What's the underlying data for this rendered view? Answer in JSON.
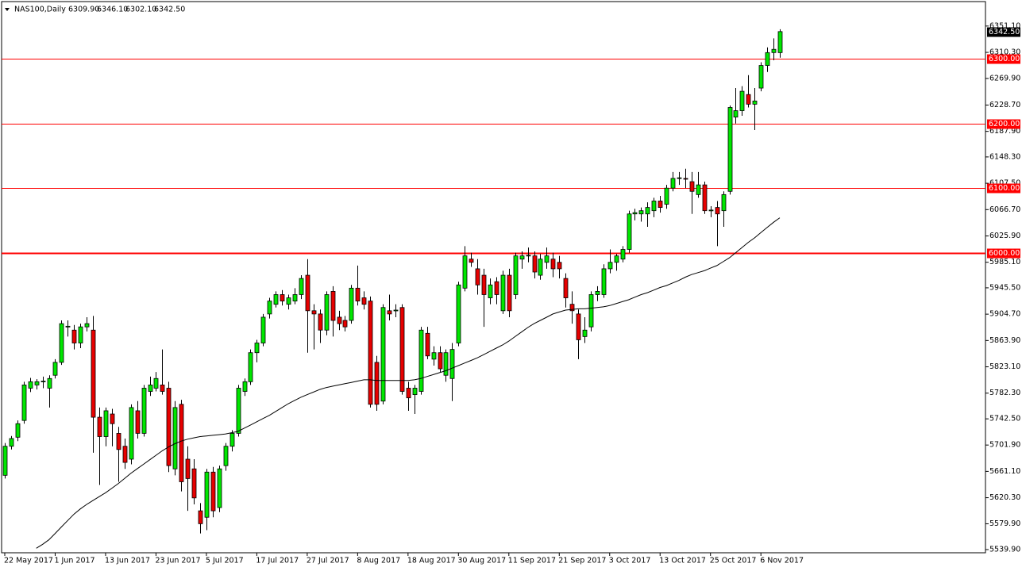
{
  "chart_data": {
    "type": "candlestick",
    "header": {
      "symbol": "NAS100,Daily",
      "ohlc_labels": [
        "6309.90",
        "6346.10",
        "6302.10",
        "6342.50"
      ]
    },
    "categories": [
      "22 May 2017",
      null,
      null,
      null,
      null,
      null,
      null,
      null,
      "1 Jun 2017",
      null,
      null,
      null,
      null,
      null,
      null,
      null,
      "13 Jun 2017",
      null,
      null,
      null,
      null,
      null,
      null,
      null,
      "23 Jun 2017",
      null,
      null,
      null,
      null,
      null,
      null,
      null,
      "5 Jul 2017",
      null,
      null,
      null,
      null,
      null,
      null,
      null,
      "17 Jul 2017",
      null,
      null,
      null,
      null,
      null,
      null,
      null,
      "27 Jul 2017",
      null,
      null,
      null,
      null,
      null,
      null,
      null,
      "8 Aug 2017",
      null,
      null,
      null,
      null,
      null,
      null,
      null,
      "18 Aug 2017",
      null,
      null,
      null,
      null,
      null,
      null,
      null,
      "30 Aug 2017",
      null,
      null,
      null,
      null,
      null,
      null,
      null,
      "11 Sep 2017",
      null,
      null,
      null,
      null,
      null,
      null,
      null,
      "21 Sep 2017",
      null,
      null,
      null,
      null,
      null,
      null,
      null,
      "3 Oct 2017",
      null,
      null,
      null,
      null,
      null,
      null,
      null,
      "13 Oct 2017",
      null,
      null,
      null,
      null,
      null,
      null,
      null,
      "25 Oct 2017",
      null,
      null,
      null,
      null,
      null,
      null,
      null,
      "6 Nov 2017",
      null,
      null,
      null
    ],
    "open": [
      5655,
      5700,
      5714,
      5740,
      5790,
      5795,
      5800,
      5790,
      5810,
      5830,
      5885,
      5880,
      5860,
      5885,
      5880,
      5745,
      5715,
      5750,
      5720,
      5700,
      5680,
      5755,
      5720,
      5785,
      5790,
      5795,
      5790,
      5665,
      5765,
      5680,
      5665,
      5600,
      5590,
      5660,
      5605,
      5670,
      5700,
      5720,
      5785,
      5800,
      5845,
      5860,
      5905,
      5920,
      5935,
      5920,
      5925,
      5935,
      5965,
      5910,
      5905,
      5880,
      5940,
      5900,
      5895,
      5895,
      5945,
      5930,
      5925,
      5830,
      5770,
      5910,
      5910,
      5915,
      5790,
      5780,
      5785,
      5875,
      5835,
      5845,
      5810,
      5805,
      5860,
      5945,
      5990,
      5975,
      5965,
      5930,
      5955,
      5910,
      5965,
      5935,
      5990,
      5995,
      5995,
      5965,
      5985,
      5990,
      5985,
      5960,
      5920,
      5905,
      5870,
      5885,
      5935,
      5935,
      5975,
      5985,
      5990,
      6005,
      6060,
      6060,
      6060,
      6065,
      6080,
      6075,
      6100,
      6115,
      6115,
      6110,
      6090,
      6105,
      6065,
      6070,
      6065,
      6095,
      6210,
      6220,
      6245,
      6230,
      6255,
      6290,
      6310,
      6309.9
    ],
    "high": [
      5705,
      5716,
      5740,
      5800,
      5806,
      5804,
      5808,
      5810,
      5835,
      5895,
      5895,
      5888,
      5890,
      5900,
      5902,
      5760,
      5760,
      5758,
      5730,
      5712,
      5765,
      5770,
      5795,
      5808,
      5815,
      5850,
      5800,
      5770,
      5772,
      5700,
      5680,
      5612,
      5665,
      5668,
      5670,
      5705,
      5725,
      5795,
      5805,
      5850,
      5865,
      5905,
      5930,
      5940,
      5942,
      5935,
      5945,
      5965,
      5990,
      5920,
      5912,
      5940,
      5948,
      5910,
      5902,
      5950,
      5980,
      5940,
      5932,
      5840,
      5920,
      5935,
      5920,
      5920,
      5800,
      5795,
      5885,
      5885,
      5855,
      5855,
      5850,
      5860,
      5955,
      6010,
      6000,
      5990,
      5975,
      5960,
      5962,
      5972,
      5975,
      6000,
      6002,
      6008,
      6002,
      5998,
      6008,
      6000,
      5995,
      5968,
      5940,
      5912,
      5900,
      5940,
      5948,
      5982,
      6005,
      5998,
      6010,
      6065,
      6068,
      6070,
      6078,
      6085,
      6088,
      6105,
      6125,
      6125,
      6130,
      6125,
      6125,
      6110,
      6072,
      6080,
      6095,
      6228,
      6255,
      6258,
      6275,
      6255,
      6295,
      6318,
      6332,
      6346.1
    ],
    "low": [
      5650,
      5695,
      5708,
      5735,
      5784,
      5788,
      5790,
      5760,
      5805,
      5826,
      5870,
      5850,
      5852,
      5878,
      5690,
      5640,
      5700,
      5700,
      5645,
      5665,
      5672,
      5712,
      5715,
      5778,
      5785,
      5780,
      5660,
      5655,
      5630,
      5600,
      5610,
      5565,
      5570,
      5590,
      5598,
      5662,
      5692,
      5715,
      5778,
      5795,
      5830,
      5855,
      5898,
      5915,
      5918,
      5912,
      5920,
      5928,
      5845,
      5850,
      5860,
      5872,
      5870,
      5880,
      5878,
      5890,
      5918,
      5912,
      5760,
      5755,
      5765,
      5895,
      5900,
      5780,
      5755,
      5750,
      5780,
      5835,
      5825,
      5815,
      5800,
      5770,
      5855,
      5940,
      5978,
      5935,
      5885,
      5920,
      5920,
      5905,
      5900,
      5928,
      5975,
      5985,
      5960,
      5958,
      5975,
      5962,
      5960,
      5915,
      5890,
      5835,
      5860,
      5878,
      5925,
      5930,
      5968,
      5972,
      5985,
      6000,
      6050,
      6048,
      6040,
      6055,
      6062,
      6068,
      6095,
      6105,
      6100,
      6060,
      6085,
      6060,
      6055,
      6010,
      6040,
      6090,
      6200,
      6212,
      6225,
      6190,
      6250,
      6280,
      6298,
      6302.1
    ],
    "close": [
      5700,
      5712,
      5735,
      5795,
      5800,
      5800,
      5801,
      5805,
      5830,
      5890,
      5886,
      5860,
      5885,
      5890,
      5745,
      5715,
      5755,
      5735,
      5695,
      5675,
      5760,
      5720,
      5790,
      5795,
      5805,
      5785,
      5670,
      5760,
      5645,
      5650,
      5620,
      5580,
      5660,
      5600,
      5665,
      5700,
      5720,
      5790,
      5800,
      5845,
      5860,
      5900,
      5925,
      5935,
      5925,
      5930,
      5935,
      5960,
      5910,
      5905,
      5880,
      5935,
      5895,
      5890,
      5885,
      5945,
      5925,
      5920,
      5765,
      5765,
      5915,
      5905,
      5911,
      5785,
      5775,
      5790,
      5880,
      5840,
      5845,
      5820,
      5845,
      5850,
      5950,
      5995,
      5985,
      5950,
      5935,
      5950,
      5935,
      5965,
      5910,
      5995,
      5995,
      5996,
      5970,
      5990,
      5995,
      5975,
      5975,
      5930,
      5910,
      5865,
      5880,
      5935,
      5940,
      5975,
      5985,
      5995,
      6005,
      6060,
      6062,
      6065,
      6070,
      6080,
      6070,
      6100,
      6115,
      6116,
      6114,
      6095,
      6105,
      6065,
      6066,
      6060,
      6090,
      6225,
      6220,
      6250,
      6230,
      6235,
      6290,
      6310,
      6315,
      6342.5
    ],
    "moving_average": [
      null,
      null,
      null,
      null,
      null,
      5542,
      5548,
      5555,
      5565,
      5575,
      5585,
      5595,
      5603,
      5610,
      5616,
      5622,
      5628,
      5635,
      5642,
      5650,
      5658,
      5665,
      5672,
      5679,
      5686,
      5693,
      5699,
      5704,
      5708,
      5711,
      5713,
      5715,
      5716,
      5717,
      5718,
      5719,
      5721,
      5723,
      5728,
      5733,
      5738,
      5743,
      5748,
      5754,
      5760,
      5766,
      5771,
      5776,
      5780,
      5784,
      5788,
      5791,
      5793,
      5795,
      5797,
      5799,
      5801,
      5803,
      5803,
      5802,
      5802,
      5802,
      5802,
      5802,
      5802,
      5803,
      5805,
      5808,
      5811,
      5814,
      5817,
      5821,
      5825,
      5829,
      5833,
      5837,
      5842,
      5847,
      5852,
      5857,
      5863,
      5870,
      5877,
      5884,
      5890,
      5895,
      5900,
      5905,
      5908,
      5911,
      5912,
      5913,
      5913,
      5914,
      5915,
      5916,
      5918,
      5921,
      5924,
      5927,
      5931,
      5935,
      5938,
      5942,
      5946,
      5949,
      5953,
      5957,
      5962,
      5966,
      5969,
      5972,
      5976,
      5980,
      5986,
      5992,
      6000,
      6008,
      6016,
      6023,
      6031,
      6039,
      6047,
      6054
    ],
    "up_color": "#00e600",
    "down_color": "#e60000",
    "ma_color": "#000000",
    "ylim": [
      5535,
      6389
    ],
    "yticks": [
      {
        "value": 6351.1,
        "label": "6351.10"
      },
      {
        "value": 6310.3,
        "label": "6310.30"
      },
      {
        "value": 6269.9,
        "label": "6269.90"
      },
      {
        "value": 6228.7,
        "label": "6228.70"
      },
      {
        "value": 6187.9,
        "label": "6187.90"
      },
      {
        "value": 6148.3,
        "label": "6148.30"
      },
      {
        "value": 6107.5,
        "label": "6107.50"
      },
      {
        "value": 6066.7,
        "label": "6066.70"
      },
      {
        "value": 6025.9,
        "label": "6025.90"
      },
      {
        "value": 5985.1,
        "label": "5985.10"
      },
      {
        "value": 5945.5,
        "label": "5945.50"
      },
      {
        "value": 5904.7,
        "label": "5904.70"
      },
      {
        "value": 5863.9,
        "label": "5863.90"
      },
      {
        "value": 5823.1,
        "label": "5823.10"
      },
      {
        "value": 5782.3,
        "label": "5782.30"
      },
      {
        "value": 5742.5,
        "label": "5742.50"
      },
      {
        "value": 5701.9,
        "label": "5701.90"
      },
      {
        "value": 5661.1,
        "label": "5661.10"
      },
      {
        "value": 5620.3,
        "label": "5620.30"
      },
      {
        "value": 5579.9,
        "label": "5579.90"
      },
      {
        "value": 5539.9,
        "label": "5539.90"
      }
    ],
    "levels": [
      {
        "value": 6300,
        "label": "6300.00",
        "width": 1
      },
      {
        "value": 6200,
        "label": "6200.00",
        "width": 1
      },
      {
        "value": 6100,
        "label": "6100.00",
        "width": 1
      },
      {
        "value": 6000,
        "label": "6000.00",
        "width": 2
      }
    ],
    "level_color": "#ff0000",
    "current_price": {
      "value": 6342.5,
      "label": "6342.50"
    }
  }
}
